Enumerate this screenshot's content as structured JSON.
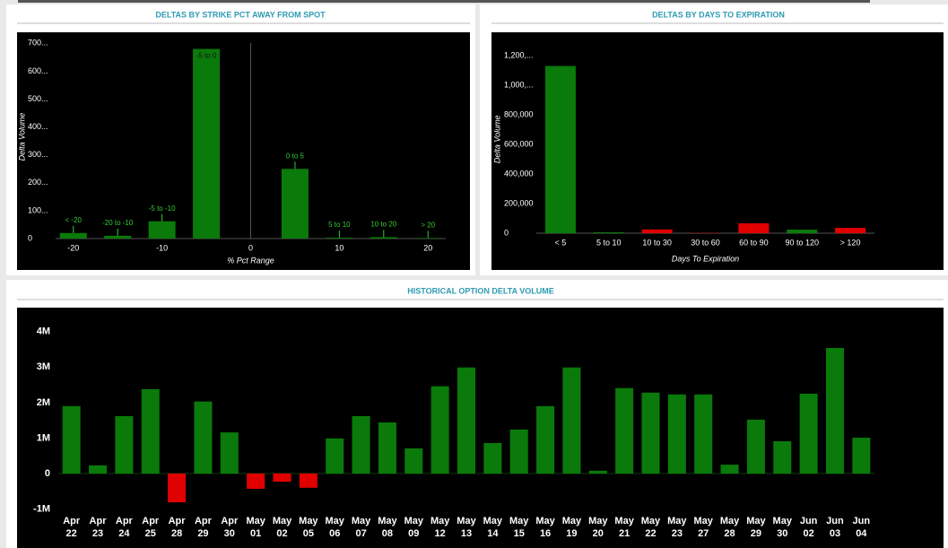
{
  "chart_data": [
    {
      "type": "bar",
      "title": "DELTAS BY STRIKE PCT AWAY FROM SPOT",
      "x_label": "% Pct Range",
      "y_label": "Delta Volume",
      "x": [
        -20,
        -15,
        -10,
        -5,
        5,
        10,
        15,
        20
      ],
      "labels": [
        "< -20",
        "-20 to -10",
        "-5 to -10",
        "-5 to 0",
        "0 to 5",
        "5 to 10",
        "10 to 20",
        "> 20"
      ],
      "values": [
        20,
        10,
        62,
        680,
        250,
        3,
        5,
        2
      ],
      "color": "#0a7a0a",
      "xlim": [
        -22,
        22
      ],
      "xticks": [
        -20,
        -10,
        0,
        10,
        20
      ],
      "ylim": [
        0,
        730
      ],
      "yticks": [
        0,
        {
          "value": 100,
          "label": "100..."
        },
        {
          "value": 200,
          "label": "200..."
        },
        {
          "value": 300,
          "label": "300..."
        },
        {
          "value": 400,
          "label": "400..."
        },
        {
          "value": 500,
          "label": "500..."
        },
        {
          "value": 600,
          "label": "600..."
        },
        {
          "value": 700,
          "label": "700..."
        }
      ]
    },
    {
      "type": "bar",
      "title": "DELTAS BY DAYS TO EXPIRATION",
      "x_label": "Days To Expiration",
      "y_label": "Delta Volume",
      "categories": [
        "< 5",
        "5 to 10",
        "10 to 30",
        "30 to 60",
        "60 to 90",
        "90 to 120",
        "> 120"
      ],
      "values": [
        1130000,
        6000,
        25000,
        2000,
        67000,
        24000,
        36000
      ],
      "colors": [
        "#0a7a0a",
        "#0a7a0a",
        "#e00000",
        "#e00000",
        "#e00000",
        "#0a7a0a",
        "#e00000"
      ],
      "ylim": [
        0,
        1270000
      ],
      "yticks": [
        0,
        {
          "value": 200000,
          "label": "200,000"
        },
        {
          "value": 400000,
          "label": "400,000"
        },
        {
          "value": 600000,
          "label": "600,000"
        },
        {
          "value": 800000,
          "label": "800,000"
        },
        {
          "value": 1000000,
          "label": "1,000,..."
        },
        {
          "value": 1200000,
          "label": "1,200,..."
        }
      ]
    },
    {
      "type": "bar",
      "title": "HISTORICAL OPTION DELTA VOLUME",
      "categories": [
        "Apr 22",
        "Apr 23",
        "Apr 24",
        "Apr 25",
        "Apr 28",
        "Apr 29",
        "Apr 30",
        "May 01",
        "May 02",
        "May 05",
        "May 06",
        "May 07",
        "May 08",
        "May 09",
        "May 12",
        "May 13",
        "May 14",
        "May 15",
        "May 16",
        "May 19",
        "May 20",
        "May 21",
        "May 22",
        "May 23",
        "May 27",
        "May 28",
        "May 29",
        "May 30",
        "Jun 02",
        "Jun 03",
        "Jun 04"
      ],
      "values": [
        1900000,
        230000,
        1620000,
        2380000,
        -810000,
        2030000,
        1160000,
        -430000,
        -230000,
        -400000,
        990000,
        1620000,
        1440000,
        710000,
        2460000,
        2990000,
        860000,
        1240000,
        1900000,
        2990000,
        80000,
        2410000,
        2280000,
        2230000,
        2230000,
        250000,
        1520000,
        910000,
        2250000,
        3540000,
        1010000
      ],
      "color": "#0a7a0a",
      "negative_color": "#e00000",
      "ylim": [
        -1100000,
        4500000
      ],
      "yticks": [
        {
          "value": -1000000,
          "label": "-1M"
        },
        0,
        {
          "value": 1000000,
          "label": "1M"
        },
        {
          "value": 2000000,
          "label": "2M"
        },
        {
          "value": 3000000,
          "label": "3M"
        },
        {
          "value": 4000000,
          "label": "4M"
        }
      ]
    }
  ]
}
